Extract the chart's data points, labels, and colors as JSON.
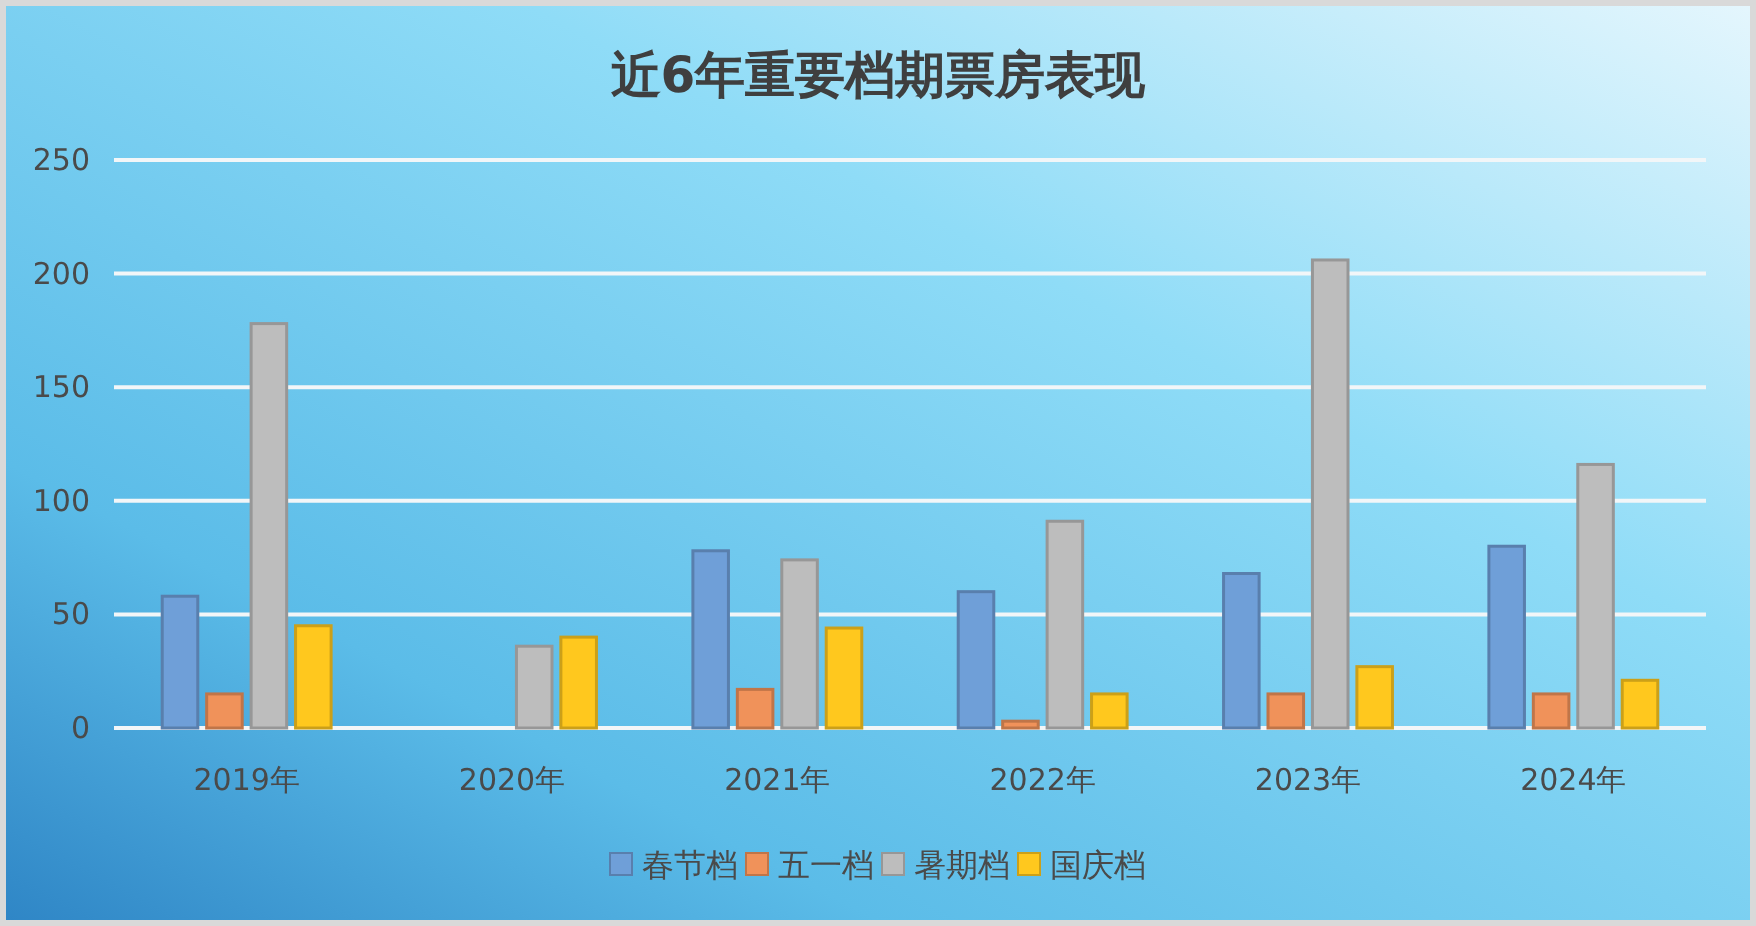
{
  "chart_data": {
    "type": "bar",
    "title": "近6年重要档期票房表现",
    "categories": [
      "2019年",
      "2020年",
      "2021年",
      "2022年",
      "2023年",
      "2024年"
    ],
    "series": [
      {
        "name": "春节档",
        "color": "#6f9fd8",
        "values": [
          58,
          0,
          78,
          60,
          68,
          80
        ]
      },
      {
        "name": "五一档",
        "color": "#f0925a",
        "values": [
          15,
          0,
          17,
          3,
          15,
          15
        ]
      },
      {
        "name": "暑期档",
        "color": "#bdbdbd",
        "values": [
          178,
          36,
          74,
          91,
          206,
          116
        ]
      },
      {
        "name": "国庆档",
        "color": "#ffc81e",
        "values": [
          45,
          40,
          44,
          15,
          27,
          21
        ]
      }
    ],
    "ylim": [
      0,
      250
    ],
    "yticks": [
      0,
      50,
      100,
      150,
      200,
      250
    ],
    "grid": "y",
    "legend": "bottom"
  }
}
